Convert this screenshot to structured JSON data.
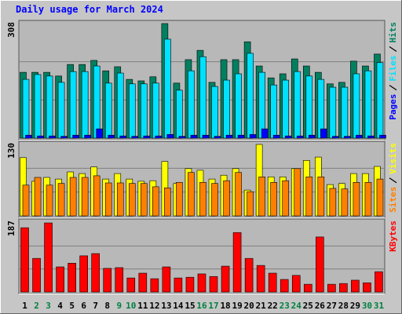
{
  "title": "Daily usage for March 2024",
  "chart_data": [
    {
      "type": "bar",
      "categories": [
        "1",
        "2",
        "3",
        "4",
        "5",
        "6",
        "7",
        "8",
        "9",
        "10",
        "11",
        "12",
        "13",
        "14",
        "15",
        "16",
        "17",
        "18",
        "19",
        "20",
        "21",
        "22",
        "23",
        "24",
        "25",
        "26",
        "27",
        "28",
        "29",
        "30",
        "31"
      ],
      "label_colors": [
        "#000000",
        "#008040",
        "#008040",
        "#000000",
        "#000000",
        "#000000",
        "#000000",
        "#000000",
        "#008040",
        "#008040",
        "#000000",
        "#000000",
        "#000000",
        "#000000",
        "#000000",
        "#008040",
        "#008040",
        "#000000",
        "#000000",
        "#000000",
        "#000000",
        "#000000",
        "#008040",
        "#008040",
        "#000000",
        "#000000",
        "#000000",
        "#000000",
        "#000000",
        "#008040",
        "#008040"
      ],
      "ylim": [
        0,
        308
      ],
      "series": [
        {
          "name": "Hits",
          "color": "#008060",
          "values": [
            177,
            177,
            177,
            167,
            198,
            198,
            209,
            181,
            192,
            158,
            154,
            165,
            308,
            148,
            211,
            236,
            150,
            211,
            211,
            259,
            194,
            162,
            173,
            213,
            194,
            177,
            146,
            150,
            207,
            194,
            226
          ]
        },
        {
          "name": "Files",
          "color": "#00e0ff",
          "values": [
            158,
            171,
            167,
            150,
            179,
            179,
            194,
            148,
            175,
            146,
            146,
            148,
            266,
            129,
            181,
            219,
            139,
            156,
            173,
            228,
            177,
            143,
            156,
            179,
            167,
            158,
            137,
            137,
            173,
            181,
            203
          ]
        },
        {
          "name": "Pages",
          "color": "#0000ff",
          "values": [
            8,
            6,
            6,
            5,
            8,
            8,
            25,
            8,
            6,
            5,
            6,
            6,
            10,
            5,
            8,
            8,
            5,
            8,
            8,
            10,
            25,
            8,
            6,
            6,
            8,
            25,
            5,
            5,
            8,
            6,
            8
          ]
        }
      ]
    },
    {
      "type": "bar",
      "ylim": [
        0,
        130
      ],
      "series": [
        {
          "name": "Visits",
          "color": "#ffff00",
          "values": [
            106,
            63,
            70,
            67,
            80,
            77,
            89,
            67,
            77,
            67,
            63,
            64,
            99,
            59,
            86,
            83,
            67,
            74,
            86,
            47,
            130,
            71,
            71,
            86,
            101,
            107,
            57,
            59,
            77,
            77,
            90
          ]
        },
        {
          "name": "Sites",
          "color": "#ff8000",
          "values": [
            56,
            70,
            56,
            59,
            70,
            70,
            73,
            60,
            60,
            59,
            59,
            53,
            51,
            61,
            79,
            61,
            59,
            64,
            79,
            44,
            71,
            61,
            64,
            86,
            71,
            71,
            50,
            49,
            61,
            61,
            67
          ]
        }
      ]
    },
    {
      "type": "bar",
      "ylim": [
        0,
        187
      ],
      "series": [
        {
          "name": "KBytes",
          "color": "#ff0000",
          "values": [
            174,
            91,
            187,
            68,
            78,
            98,
            104,
            64,
            66,
            38,
            51,
            36,
            68,
            38,
            40,
            49,
            42,
            70,
            161,
            91,
            72,
            51,
            34,
            45,
            21,
            149,
            21,
            23,
            32,
            25,
            55
          ]
        }
      ]
    }
  ]
}
